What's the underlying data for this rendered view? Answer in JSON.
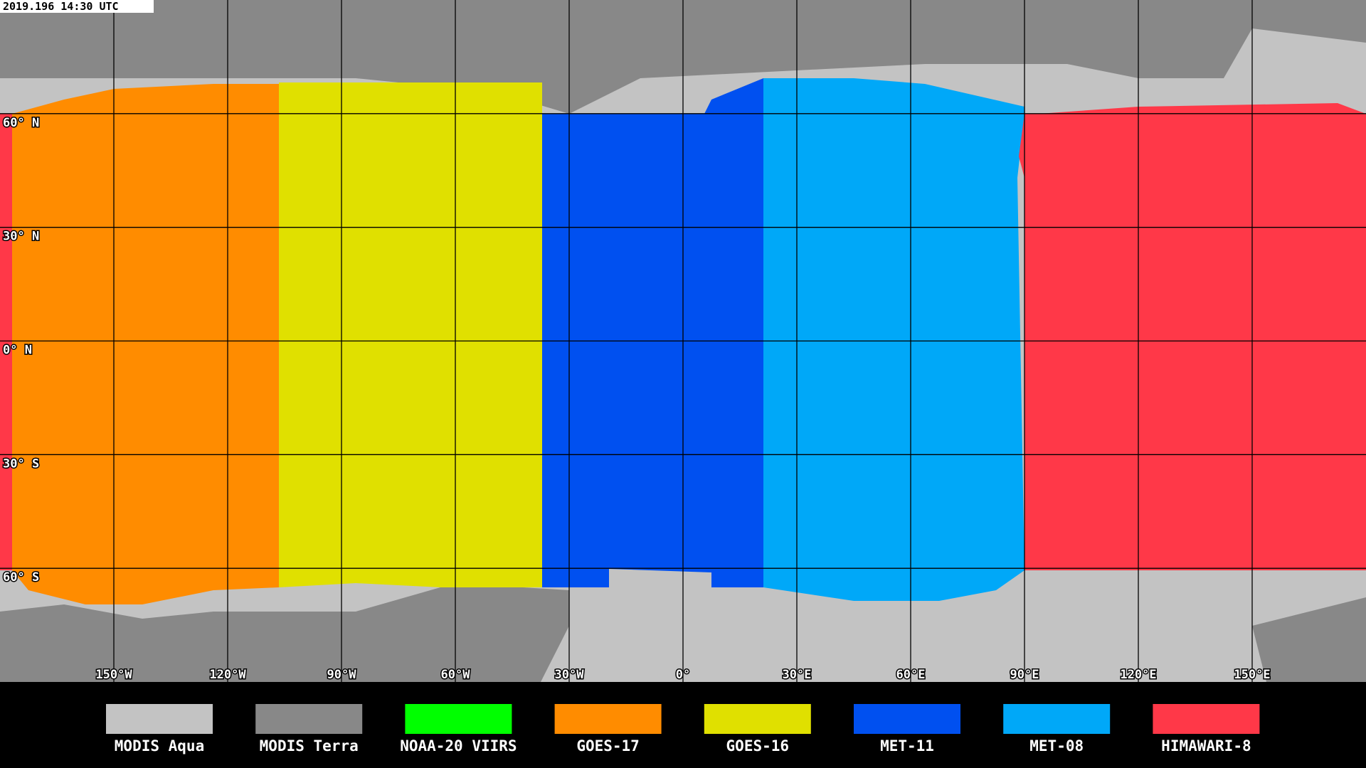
{
  "timestamp": "2019.196 14:30 UTC",
  "lat_labels": [
    "60° N",
    "30° N",
    "0° N",
    "30° S",
    "60° S"
  ],
  "lon_labels": [
    "150°W",
    "120°W",
    "90°W",
    "60°W",
    "30°W",
    "0°",
    "30°E",
    "60°E",
    "90°E",
    "120°E",
    "150°E"
  ],
  "legend": [
    {
      "label": "MODIS Aqua",
      "color": "#c3c3c3"
    },
    {
      "label": "MODIS Terra",
      "color": "#888888"
    },
    {
      "label": "NOAA-20 VIIRS",
      "color": "#00ff00"
    },
    {
      "label": "GOES-17",
      "color": "#ff8c00"
    },
    {
      "label": "GOES-16",
      "color": "#e0e000"
    },
    {
      "label": "MET-11",
      "color": "#0050f0"
    },
    {
      "label": "MET-08",
      "color": "#00a8f8"
    },
    {
      "label": "HIMAWARI-8",
      "color": "#ff3848"
    }
  ]
}
